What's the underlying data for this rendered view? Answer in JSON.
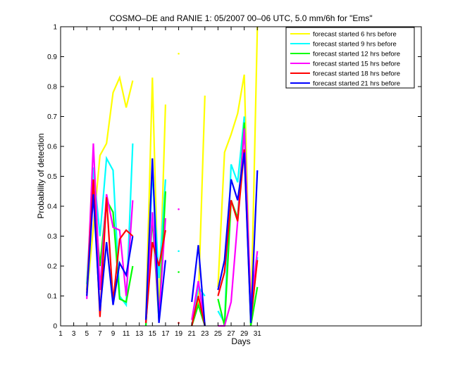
{
  "chart_data": {
    "type": "line",
    "title": "COSMO–DE and RANIE 1: 05/2007 00–06 UTC, 5.0 mm/6h for \"Ems\"",
    "xlabel": "Days",
    "ylabel": "Probability of detection",
    "xlim": [
      1,
      56
    ],
    "ylim": [
      0,
      1
    ],
    "xticks": [
      1,
      3,
      5,
      7,
      9,
      11,
      13,
      15,
      17,
      19,
      21,
      23,
      25,
      27,
      29,
      31
    ],
    "yticks": [
      0,
      0.1,
      0.2,
      0.3,
      0.4,
      0.5,
      0.6,
      0.7,
      0.8,
      0.9,
      1
    ],
    "grid": false,
    "legend_position": "top-right",
    "series": [
      {
        "name": "forecast started 6 hrs before",
        "color": "#ffff00",
        "points": [
          [
            5,
            0.1
          ],
          [
            6,
            0.33
          ],
          [
            7,
            0.57
          ],
          [
            8,
            0.61
          ],
          [
            9,
            0.78
          ],
          [
            10,
            0.83
          ],
          [
            11,
            0.73
          ],
          [
            12,
            0.82
          ],
          null,
          [
            14,
            0.02
          ],
          [
            15,
            0.83
          ],
          [
            16,
            0.02
          ],
          [
            17,
            0.74
          ],
          null,
          [
            19,
            0.91
          ],
          null,
          [
            21,
            0.0
          ],
          [
            22,
            0.08
          ],
          [
            23,
            0.77
          ],
          null,
          [
            25,
            0.13
          ],
          [
            26,
            0.58
          ],
          [
            27,
            0.64
          ],
          [
            28,
            0.71
          ],
          [
            29,
            0.84
          ],
          [
            30,
            0.0
          ],
          [
            31,
            1.0
          ]
        ]
      },
      {
        "name": "forecast started 9 hrs before",
        "color": "#00ffff",
        "points": [
          [
            5,
            0.14
          ],
          [
            6,
            0.53
          ],
          [
            7,
            0.3
          ],
          [
            8,
            0.56
          ],
          [
            9,
            0.52
          ],
          [
            10,
            0.1
          ],
          [
            11,
            0.07
          ],
          [
            12,
            0.61
          ],
          null,
          [
            14,
            0.0
          ],
          [
            15,
            0.52
          ],
          [
            16,
            0.16
          ],
          [
            17,
            0.49
          ],
          null,
          [
            19,
            0.25
          ],
          null,
          [
            21,
            0.0
          ],
          [
            22,
            0.13
          ],
          [
            23,
            0.1
          ],
          null,
          [
            25,
            0.05
          ],
          [
            26,
            0.01
          ],
          [
            27,
            0.54
          ],
          [
            28,
            0.48
          ],
          [
            29,
            0.7
          ],
          [
            30,
            0.01
          ],
          [
            31,
            0.23
          ]
        ]
      },
      {
        "name": "forecast started 12 hrs before",
        "color": "#00ff00",
        "points": [
          [
            5,
            0.12
          ],
          [
            6,
            0.45
          ],
          [
            7,
            0.2
          ],
          [
            8,
            0.42
          ],
          [
            9,
            0.38
          ],
          [
            10,
            0.09
          ],
          [
            11,
            0.08
          ],
          [
            12,
            0.2
          ],
          null,
          [
            14,
            0.0
          ],
          [
            15,
            0.36
          ],
          [
            16,
            0.02
          ],
          [
            17,
            0.45
          ],
          null,
          [
            19,
            0.18
          ],
          null,
          [
            21,
            0.0
          ],
          [
            22,
            0.07
          ],
          [
            23,
            0.0
          ],
          null,
          [
            25,
            0.09
          ],
          [
            26,
            0.0
          ],
          [
            27,
            0.42
          ],
          [
            28,
            0.36
          ],
          [
            29,
            0.68
          ],
          [
            30,
            0.0
          ],
          [
            31,
            0.13
          ]
        ]
      },
      {
        "name": "forecast started 15 hrs before",
        "color": "#ff00ff",
        "points": [
          [
            5,
            0.09
          ],
          [
            6,
            0.61
          ],
          [
            7,
            0.12
          ],
          [
            8,
            0.44
          ],
          [
            9,
            0.33
          ],
          [
            10,
            0.32
          ],
          [
            11,
            0.1
          ],
          [
            12,
            0.42
          ],
          null,
          [
            14,
            0.01
          ],
          [
            15,
            0.38
          ],
          [
            16,
            0.03
          ],
          [
            17,
            0.36
          ],
          null,
          [
            19,
            0.39
          ],
          null,
          [
            21,
            0.02
          ],
          [
            22,
            0.15
          ],
          [
            23,
            0.0
          ],
          null,
          [
            25,
            0.0
          ],
          [
            26,
            0.0
          ],
          [
            27,
            0.08
          ],
          [
            28,
            0.35
          ],
          [
            29,
            0.66
          ],
          [
            30,
            0.07
          ],
          [
            31,
            0.25
          ]
        ]
      },
      {
        "name": "forecast started 18 hrs before",
        "color": "#ff0000",
        "points": [
          [
            5,
            0.11
          ],
          [
            6,
            0.49
          ],
          [
            7,
            0.03
          ],
          [
            8,
            0.43
          ],
          [
            9,
            0.08
          ],
          [
            10,
            0.29
          ],
          [
            11,
            0.32
          ],
          [
            12,
            0.3
          ],
          null,
          [
            14,
            0.01
          ],
          [
            15,
            0.28
          ],
          [
            16,
            0.2
          ],
          [
            17,
            0.32
          ],
          null,
          [
            19,
            0.01
          ],
          null,
          [
            21,
            0.0
          ],
          [
            22,
            0.1
          ],
          [
            23,
            0.0
          ],
          null,
          [
            25,
            0.1
          ],
          [
            26,
            0.18
          ],
          [
            27,
            0.42
          ],
          [
            28,
            0.35
          ],
          [
            29,
            0.59
          ],
          [
            30,
            0.02
          ],
          [
            31,
            0.22
          ]
        ]
      },
      {
        "name": "forecast started 21 hrs before",
        "color": "#0000ff",
        "points": [
          [
            5,
            0.1
          ],
          [
            6,
            0.44
          ],
          [
            7,
            0.05
          ],
          [
            8,
            0.28
          ],
          [
            9,
            0.07
          ],
          [
            10,
            0.21
          ],
          [
            11,
            0.17
          ],
          [
            12,
            0.3
          ],
          null,
          [
            14,
            0.02
          ],
          [
            15,
            0.56
          ],
          [
            16,
            0.01
          ],
          [
            17,
            0.22
          ],
          null,
          null,
          null,
          [
            21,
            0.08
          ],
          [
            22,
            0.27
          ],
          [
            23,
            0.0
          ],
          null,
          [
            25,
            0.12
          ],
          [
            26,
            0.22
          ],
          [
            27,
            0.49
          ],
          [
            28,
            0.42
          ],
          [
            29,
            0.58
          ],
          [
            30,
            0.01
          ],
          [
            31,
            0.52
          ]
        ]
      }
    ]
  }
}
